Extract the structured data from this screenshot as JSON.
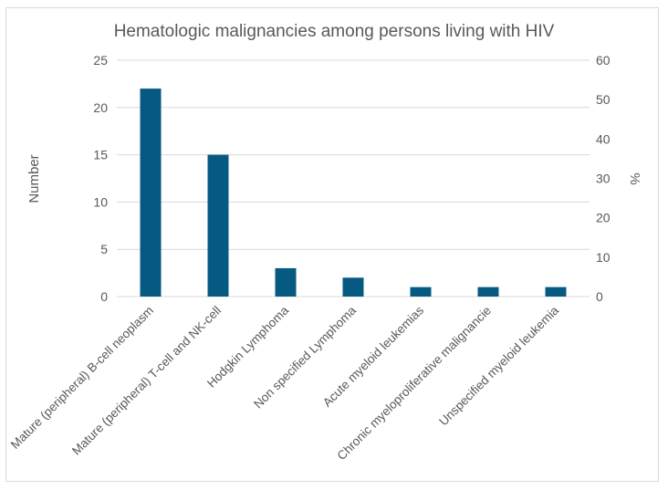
{
  "chart_data": {
    "type": "bar",
    "title": "Hematologic malignancies among persons living with HIV",
    "ylabel": "Number",
    "y2label": "%",
    "categories": [
      "Mature (peripheral) B-cell neoplasm",
      "Mature (peripheral) T-cell and NK-cell",
      "Hodgkin Lymphoma",
      "Non specified Lymphoma",
      "Acute myeloid leukemias",
      "Chronic myeloproliferative malignancie",
      "Unspecified myeloid leukemia"
    ],
    "series": [
      {
        "values": [
          22,
          15,
          3,
          2,
          1,
          1,
          1
        ]
      }
    ],
    "ylim": [
      0,
      25
    ],
    "yticks": [
      0,
      5,
      10,
      15,
      20,
      25
    ],
    "y2lim": [
      0,
      60
    ],
    "y2ticks": [
      0,
      10,
      20,
      30,
      40,
      50,
      60
    ],
    "grid": true,
    "legend": "none",
    "bar_color": "#065a82",
    "grid_color": "#d9d9d9"
  }
}
